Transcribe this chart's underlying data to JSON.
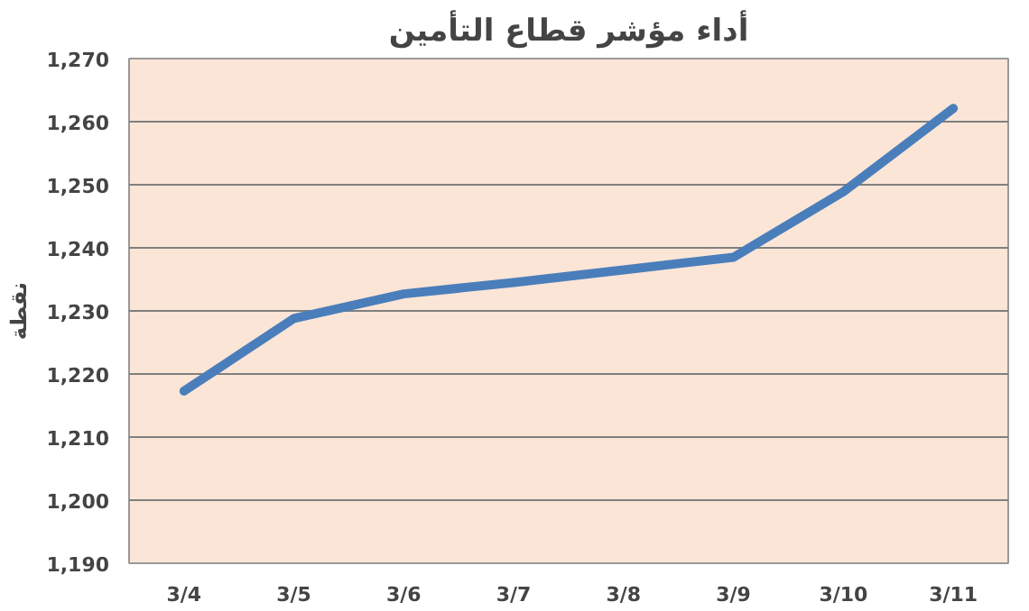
{
  "chart_data": {
    "type": "line",
    "title": "أداء مؤشر قطاع التأمين",
    "ylabel": "نقطة",
    "categories": [
      "3/4",
      "3/5",
      "3/6",
      "3/7",
      "3/8",
      "3/9",
      "3/10",
      "3/11"
    ],
    "series": [
      {
        "color": "#4a7ebb",
        "values": [
          1217.3,
          1228.8,
          1232.7,
          1234.5,
          1236.5,
          1238.5,
          1248.9,
          1262.1
        ]
      }
    ],
    "ylim": [
      1190,
      1270
    ],
    "yticks": [
      {
        "value": 1190,
        "label": "1,190"
      },
      {
        "value": 1200,
        "label": "1,200"
      },
      {
        "value": 1210,
        "label": "1,210"
      },
      {
        "value": 1220,
        "label": "1,220"
      },
      {
        "value": 1230,
        "label": "1,230"
      },
      {
        "value": 1240,
        "label": "1,240"
      },
      {
        "value": 1250,
        "label": "1,250"
      },
      {
        "value": 1260,
        "label": "1,260"
      },
      {
        "value": 1270,
        "label": "1,270"
      }
    ],
    "grid": "y",
    "marker": "none",
    "line_style": "solid"
  }
}
